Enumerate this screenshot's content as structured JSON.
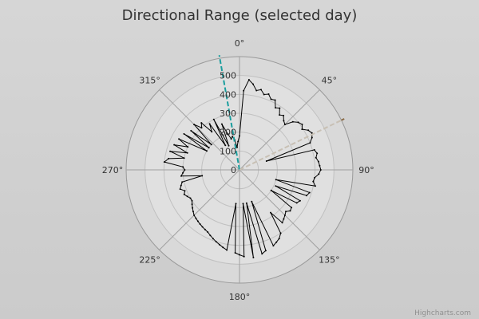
{
  "chart_data": {
    "type": "polar-line",
    "title": "Directional Range (selected day)",
    "credit": "Highcharts.com",
    "x_axis": {
      "unit": "degrees",
      "min": 0,
      "max": 360,
      "tick_labels": [
        "0°",
        "45°",
        "90°",
        "135°",
        "180°",
        "225°",
        "270°",
        "315°"
      ],
      "tick_values": [
        0,
        45,
        90,
        135,
        180,
        225,
        270,
        315
      ]
    },
    "y_axis": {
      "min": 0,
      "max": 600,
      "tick_labels": [
        "0",
        "100",
        "200",
        "300",
        "400",
        "500"
      ],
      "tick_values": [
        0,
        100,
        200,
        300,
        400,
        500
      ]
    },
    "grid": true,
    "series": [
      {
        "color": "#000000",
        "points": [
          [
            0,
            180
          ],
          [
            3,
            420
          ],
          [
            6,
            480
          ],
          [
            9,
            460
          ],
          [
            12,
            430
          ],
          [
            15,
            440
          ],
          [
            18,
            420
          ],
          [
            21,
            430
          ],
          [
            24,
            410
          ],
          [
            27,
            415
          ],
          [
            30,
            380
          ],
          [
            33,
            390
          ],
          [
            36,
            360
          ],
          [
            39,
            370
          ],
          [
            42,
            350
          ],
          [
            45,
            340
          ],
          [
            48,
            380
          ],
          [
            51,
            400
          ],
          [
            54,
            410
          ],
          [
            57,
            395
          ],
          [
            60,
            420
          ],
          [
            63,
            430
          ],
          [
            66,
            420
          ],
          [
            69,
            400
          ],
          [
            72,
            150
          ],
          [
            75,
            410
          ],
          [
            78,
            420
          ],
          [
            81,
            410
          ],
          [
            84,
            420
          ],
          [
            87,
            425
          ],
          [
            90,
            430
          ],
          [
            93,
            420
          ],
          [
            96,
            400
          ],
          [
            99,
            395
          ],
          [
            102,
            410
          ],
          [
            105,
            200
          ],
          [
            108,
            390
          ],
          [
            111,
            380
          ],
          [
            114,
            210
          ],
          [
            117,
            360
          ],
          [
            120,
            350
          ],
          [
            123,
            200
          ],
          [
            126,
            340
          ],
          [
            129,
            345
          ],
          [
            132,
            330
          ],
          [
            135,
            340
          ],
          [
            138,
            350
          ],
          [
            141,
            360
          ],
          [
            144,
            280
          ],
          [
            147,
            400
          ],
          [
            150,
            420
          ],
          [
            153,
            430
          ],
          [
            156,
            440
          ],
          [
            159,
            180
          ],
          [
            162,
            450
          ],
          [
            165,
            460
          ],
          [
            168,
            180
          ],
          [
            171,
            470
          ],
          [
            174,
            180
          ],
          [
            177,
            460
          ],
          [
            180,
            450
          ],
          [
            183,
            440
          ],
          [
            186,
            180
          ],
          [
            189,
            430
          ],
          [
            192,
            420
          ],
          [
            195,
            410
          ],
          [
            198,
            400
          ],
          [
            201,
            390
          ],
          [
            204,
            380
          ],
          [
            207,
            370
          ],
          [
            210,
            365
          ],
          [
            213,
            360
          ],
          [
            216,
            355
          ],
          [
            219,
            350
          ],
          [
            222,
            345
          ],
          [
            225,
            340
          ],
          [
            228,
            330
          ],
          [
            231,
            320
          ],
          [
            234,
            310
          ],
          [
            237,
            300
          ],
          [
            240,
            300
          ],
          [
            243,
            310
          ],
          [
            246,
            320
          ],
          [
            249,
            310
          ],
          [
            252,
            330
          ],
          [
            255,
            320
          ],
          [
            258,
            310
          ],
          [
            261,
            200
          ],
          [
            264,
            310
          ],
          [
            267,
            300
          ],
          [
            270,
            290
          ],
          [
            273,
            300
          ],
          [
            276,
            400
          ],
          [
            279,
            380
          ],
          [
            282,
            300
          ],
          [
            285,
            380
          ],
          [
            288,
            290
          ],
          [
            291,
            370
          ],
          [
            294,
            300
          ],
          [
            297,
            360
          ],
          [
            300,
            200
          ],
          [
            303,
            350
          ],
          [
            306,
            200
          ],
          [
            309,
            330
          ],
          [
            312,
            200
          ],
          [
            315,
            340
          ],
          [
            318,
            300
          ],
          [
            321,
            320
          ],
          [
            324,
            250
          ],
          [
            327,
            290
          ],
          [
            330,
            150
          ],
          [
            333,
            300
          ],
          [
            336,
            140
          ],
          [
            339,
            260
          ],
          [
            342,
            200
          ],
          [
            345,
            170
          ],
          [
            348,
            180
          ],
          [
            351,
            160
          ],
          [
            354,
            120
          ],
          [
            357,
            150
          ]
        ]
      }
    ],
    "reference_lines": [
      {
        "angle": 350,
        "from": 0,
        "to": 600,
        "color": "#1a9e9e",
        "style": "dashed"
      },
      {
        "angle": 64,
        "from": 0,
        "to": 600,
        "color": "#8a6a44",
        "style": "dashed",
        "inner_color": "#c8c0b4"
      }
    ]
  }
}
